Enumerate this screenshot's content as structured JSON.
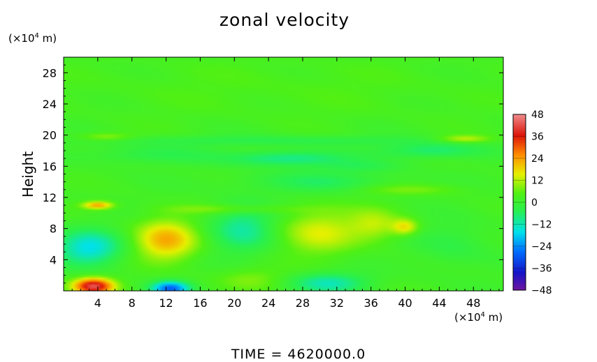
{
  "chart_data": {
    "type": "heatmap",
    "title": "zonal velocity",
    "ylabel": "Height",
    "xlabel": "",
    "x_unit_prefix": "(×10",
    "x_unit_exp": "4",
    "x_unit_suffix": " m)",
    "y_unit_prefix": "(×10",
    "y_unit_exp": "4",
    "y_unit_suffix": " m)",
    "xlim": [
      0,
      51.5
    ],
    "ylim": [
      0,
      30
    ],
    "x_ticks": [
      4,
      8,
      12,
      16,
      20,
      24,
      28,
      32,
      36,
      40,
      44,
      48
    ],
    "y_ticks": [
      4,
      8,
      12,
      16,
      20,
      24,
      28
    ],
    "colorbar": {
      "ticks": [
        48,
        36,
        24,
        12,
        0,
        -12,
        -24,
        -36,
        -48
      ],
      "vmin": -48,
      "vmax": 48
    },
    "features": [
      {
        "x": 3.5,
        "y": 0.6,
        "value": 40,
        "sx": 2.3,
        "sy": 1.0
      },
      {
        "x": 12.5,
        "y": 0.3,
        "value": -30,
        "sx": 2.2,
        "sy": 0.9
      },
      {
        "x": 3.0,
        "y": 5.5,
        "value": -18,
        "sx": 3.8,
        "sy": 2.2
      },
      {
        "x": 12.0,
        "y": 6.5,
        "value": 20,
        "sx": 3.5,
        "sy": 2.5
      },
      {
        "x": 21.0,
        "y": 8.0,
        "value": -12,
        "sx": 3.8,
        "sy": 3.0
      },
      {
        "x": 30.0,
        "y": 7.5,
        "value": 12,
        "sx": 4.5,
        "sy": 2.8
      },
      {
        "x": 36.5,
        "y": 8.5,
        "value": 10,
        "sx": 3.0,
        "sy": 2.0
      },
      {
        "x": 40.0,
        "y": 8.2,
        "value": 14,
        "sx": 1.5,
        "sy": 1.0
      },
      {
        "x": 45.5,
        "y": 6.0,
        "value": -5,
        "sx": 4.5,
        "sy": 3.0
      },
      {
        "x": 4.0,
        "y": 11.0,
        "value": 22,
        "sx": 1.8,
        "sy": 0.5
      },
      {
        "x": 31.0,
        "y": 1.0,
        "value": -14,
        "sx": 4.5,
        "sy": 1.3
      },
      {
        "x": 22.0,
        "y": 1.5,
        "value": 6,
        "sx": 4.0,
        "sy": 1.4
      },
      {
        "x": 26.0,
        "y": 17.0,
        "value": -12,
        "sx": 7.0,
        "sy": 1.0
      },
      {
        "x": 43.0,
        "y": 18.0,
        "value": -10,
        "sx": 6.0,
        "sy": 1.0
      },
      {
        "x": 10.0,
        "y": 17.5,
        "value": -6,
        "sx": 7.0,
        "sy": 1.2
      },
      {
        "x": 30.0,
        "y": 14.0,
        "value": -7,
        "sx": 9.0,
        "sy": 1.4
      },
      {
        "x": 25.0,
        "y": 19.3,
        "value": -6,
        "sx": 20.0,
        "sy": 0.7
      },
      {
        "x": 47.0,
        "y": 19.5,
        "value": 12,
        "sx": 3.0,
        "sy": 0.5
      },
      {
        "x": 5.0,
        "y": 19.8,
        "value": 8,
        "sx": 3.0,
        "sy": 0.5
      },
      {
        "x": 20.0,
        "y": 10.5,
        "value": 7,
        "sx": 8.0,
        "sy": 0.6
      },
      {
        "x": 40.0,
        "y": 13.0,
        "value": 6,
        "sx": 6.0,
        "sy": 0.7
      },
      {
        "x": 35.0,
        "y": 16.0,
        "value": -5,
        "sx": 5.0,
        "sy": 0.8
      },
      {
        "x": 25.0,
        "y": 26.0,
        "value": 2,
        "sx": 25.0,
        "sy": 4.0
      }
    ]
  },
  "footer": {
    "time_label": "TIME  =  4620000.0"
  }
}
